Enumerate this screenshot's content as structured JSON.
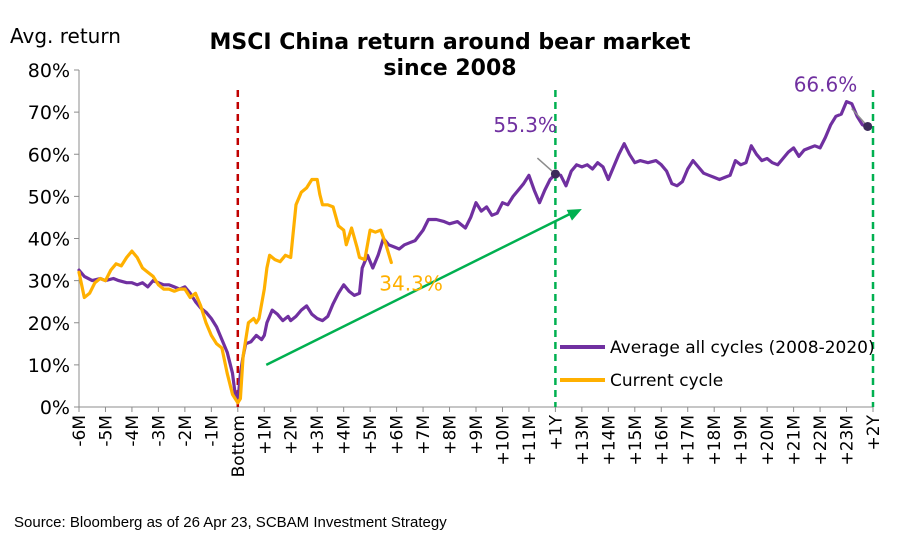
{
  "chart_data": {
    "type": "line",
    "title": "MSCI China return around bear market since 2008",
    "title_line1": "MSCI China return around bear market",
    "title_line2": "since 2008",
    "ylabel": "Avg. return",
    "ylim": [
      0,
      80
    ],
    "yticks": [
      "0%",
      "10%",
      "20%",
      "30%",
      "40%",
      "50%",
      "60%",
      "70%",
      "80%"
    ],
    "x_range": [
      -6,
      24
    ],
    "x_tick_labels": [
      "-6M",
      "-5M",
      "-4M",
      "-3M",
      "-2M",
      "-1M",
      "Bottom",
      "+1M",
      "+2M",
      "+3M",
      "+4M",
      "+5M",
      "+6M",
      "+7M",
      "+8M",
      "+9M",
      "+10M",
      "+11M",
      "+1Y",
      "+13M",
      "+14M",
      "+15M",
      "+16M",
      "+17M",
      "+18M",
      "+19M",
      "+20M",
      "+21M",
      "+22M",
      "+23M",
      "+2Y"
    ],
    "x_tick_positions": [
      -6,
      -5,
      -4,
      -3,
      -2,
      -1,
      0,
      1,
      2,
      3,
      4,
      5,
      6,
      7,
      8,
      9,
      10,
      11,
      12,
      13,
      14,
      15,
      16,
      17,
      18,
      19,
      20,
      21,
      22,
      23,
      24
    ],
    "grid": false,
    "legend_position": "bottom-right",
    "series": [
      {
        "name": "Average all cycles (2008-2020)",
        "color": "#7030A0",
        "points": [
          [
            -6,
            32.5
          ],
          [
            -5.8,
            31
          ],
          [
            -5.5,
            30
          ],
          [
            -5.2,
            30.5
          ],
          [
            -5,
            30
          ],
          [
            -4.7,
            30.5
          ],
          [
            -4.5,
            30
          ],
          [
            -4.2,
            29.5
          ],
          [
            -4,
            29.5
          ],
          [
            -3.8,
            29
          ],
          [
            -3.6,
            29.5
          ],
          [
            -3.4,
            28.5
          ],
          [
            -3.2,
            30
          ],
          [
            -3,
            29.5
          ],
          [
            -2.8,
            29
          ],
          [
            -2.6,
            29
          ],
          [
            -2.4,
            28.5
          ],
          [
            -2.2,
            28
          ],
          [
            -2,
            28.5
          ],
          [
            -1.8,
            27
          ],
          [
            -1.6,
            25
          ],
          [
            -1.4,
            23.5
          ],
          [
            -1.2,
            22.5
          ],
          [
            -1,
            21
          ],
          [
            -0.8,
            19
          ],
          [
            -0.6,
            16
          ],
          [
            -0.4,
            13
          ],
          [
            -0.2,
            8
          ],
          [
            -0.1,
            3
          ],
          [
            0,
            1
          ],
          [
            0.1,
            8
          ],
          [
            0.2,
            12
          ],
          [
            0.3,
            15
          ],
          [
            0.5,
            15.5
          ],
          [
            0.7,
            17
          ],
          [
            0.9,
            16
          ],
          [
            1,
            17
          ],
          [
            1.1,
            20
          ],
          [
            1.3,
            23
          ],
          [
            1.5,
            22
          ],
          [
            1.7,
            20.5
          ],
          [
            1.9,
            21.5
          ],
          [
            2,
            20.5
          ],
          [
            2.2,
            21.5
          ],
          [
            2.4,
            23
          ],
          [
            2.6,
            24
          ],
          [
            2.8,
            22
          ],
          [
            3,
            21
          ],
          [
            3.2,
            20.5
          ],
          [
            3.4,
            21.5
          ],
          [
            3.6,
            24.5
          ],
          [
            3.8,
            27
          ],
          [
            4,
            29
          ],
          [
            4.2,
            27.5
          ],
          [
            4.4,
            26.5
          ],
          [
            4.6,
            27
          ],
          [
            4.7,
            33
          ],
          [
            4.9,
            36
          ],
          [
            5.1,
            33
          ],
          [
            5.3,
            36
          ],
          [
            5.5,
            40
          ],
          [
            5.7,
            38.5
          ],
          [
            5.9,
            38
          ],
          [
            6.1,
            37.5
          ],
          [
            6.3,
            38.5
          ],
          [
            6.5,
            39
          ],
          [
            6.7,
            39.5
          ],
          [
            7,
            42
          ],
          [
            7.2,
            44.5
          ],
          [
            7.5,
            44.5
          ],
          [
            7.8,
            44
          ],
          [
            8,
            43.5
          ],
          [
            8.3,
            44
          ],
          [
            8.6,
            42.5
          ],
          [
            8.8,
            45
          ],
          [
            9,
            48.5
          ],
          [
            9.2,
            46.5
          ],
          [
            9.4,
            47.5
          ],
          [
            9.6,
            45.5
          ],
          [
            9.8,
            46
          ],
          [
            10,
            48.5
          ],
          [
            10.2,
            48
          ],
          [
            10.4,
            50
          ],
          [
            10.6,
            51.5
          ],
          [
            10.8,
            53
          ],
          [
            11,
            55
          ],
          [
            11.2,
            51.5
          ],
          [
            11.4,
            48.5
          ],
          [
            11.6,
            51.5
          ],
          [
            11.8,
            54
          ],
          [
            12,
            55.3
          ],
          [
            12.2,
            55
          ],
          [
            12.4,
            52.5
          ],
          [
            12.6,
            56
          ],
          [
            12.8,
            57.5
          ],
          [
            13,
            57
          ],
          [
            13.2,
            57.5
          ],
          [
            13.4,
            56.5
          ],
          [
            13.6,
            58
          ],
          [
            13.8,
            57
          ],
          [
            14,
            54
          ],
          [
            14.2,
            57
          ],
          [
            14.4,
            60
          ],
          [
            14.6,
            62.5
          ],
          [
            14.8,
            60
          ],
          [
            15,
            58
          ],
          [
            15.2,
            58.5
          ],
          [
            15.5,
            58
          ],
          [
            15.8,
            58.5
          ],
          [
            16,
            57.5
          ],
          [
            16.2,
            56
          ],
          [
            16.4,
            53
          ],
          [
            16.6,
            52.5
          ],
          [
            16.8,
            53.5
          ],
          [
            17,
            56.5
          ],
          [
            17.2,
            58.5
          ],
          [
            17.4,
            57
          ],
          [
            17.6,
            55.5
          ],
          [
            17.8,
            55
          ],
          [
            18,
            54.5
          ],
          [
            18.2,
            54
          ],
          [
            18.4,
            54.5
          ],
          [
            18.6,
            55
          ],
          [
            18.8,
            58.5
          ],
          [
            19,
            57.5
          ],
          [
            19.2,
            58
          ],
          [
            19.4,
            62
          ],
          [
            19.6,
            60
          ],
          [
            19.8,
            58.5
          ],
          [
            20,
            59
          ],
          [
            20.2,
            58
          ],
          [
            20.4,
            57.5
          ],
          [
            20.6,
            59
          ],
          [
            20.8,
            60.5
          ],
          [
            21,
            61.5
          ],
          [
            21.2,
            59.5
          ],
          [
            21.4,
            61
          ],
          [
            21.6,
            61.5
          ],
          [
            21.8,
            62
          ],
          [
            22,
            61.5
          ],
          [
            22.2,
            64
          ],
          [
            22.4,
            67
          ],
          [
            22.6,
            69
          ],
          [
            22.8,
            69.5
          ],
          [
            23,
            72.5
          ],
          [
            23.2,
            72
          ],
          [
            23.4,
            69
          ],
          [
            23.6,
            67
          ],
          [
            23.8,
            66.6
          ]
        ]
      },
      {
        "name": "Current cycle",
        "color": "#FFB000",
        "points": [
          [
            -6,
            32
          ],
          [
            -5.8,
            26
          ],
          [
            -5.6,
            27
          ],
          [
            -5.4,
            29.5
          ],
          [
            -5.2,
            30.5
          ],
          [
            -5,
            30
          ],
          [
            -4.8,
            32.5
          ],
          [
            -4.6,
            34
          ],
          [
            -4.4,
            33.5
          ],
          [
            -4.2,
            35.5
          ],
          [
            -4,
            37
          ],
          [
            -3.8,
            35.5
          ],
          [
            -3.6,
            33
          ],
          [
            -3.4,
            32
          ],
          [
            -3.2,
            31
          ],
          [
            -3,
            29
          ],
          [
            -2.8,
            28
          ],
          [
            -2.6,
            28
          ],
          [
            -2.4,
            27.5
          ],
          [
            -2.2,
            28
          ],
          [
            -2,
            28
          ],
          [
            -1.8,
            26
          ],
          [
            -1.6,
            27
          ],
          [
            -1.4,
            24
          ],
          [
            -1.2,
            20
          ],
          [
            -1,
            17
          ],
          [
            -0.8,
            15
          ],
          [
            -0.6,
            14
          ],
          [
            -0.4,
            8
          ],
          [
            -0.2,
            3
          ],
          [
            0,
            1
          ],
          [
            0.1,
            2
          ],
          [
            0.2,
            12
          ],
          [
            0.4,
            20
          ],
          [
            0.6,
            21
          ],
          [
            0.7,
            20
          ],
          [
            0.8,
            21
          ],
          [
            1,
            28
          ],
          [
            1.1,
            33
          ],
          [
            1.2,
            36
          ],
          [
            1.4,
            35
          ],
          [
            1.6,
            34.5
          ],
          [
            1.8,
            36
          ],
          [
            2,
            35.5
          ],
          [
            2.2,
            48
          ],
          [
            2.4,
            51
          ],
          [
            2.6,
            52
          ],
          [
            2.8,
            54
          ],
          [
            3,
            54
          ],
          [
            3.1,
            50.5
          ],
          [
            3.2,
            48
          ],
          [
            3.4,
            48
          ],
          [
            3.6,
            47.5
          ],
          [
            3.8,
            43
          ],
          [
            4,
            42
          ],
          [
            4.1,
            38.5
          ],
          [
            4.3,
            42.5
          ],
          [
            4.5,
            38
          ],
          [
            4.6,
            35.5
          ],
          [
            4.8,
            35
          ],
          [
            5,
            42
          ],
          [
            5.2,
            41.5
          ],
          [
            5.4,
            42
          ],
          [
            5.6,
            38.5
          ],
          [
            5.8,
            34.3
          ]
        ]
      }
    ],
    "annotations": [
      {
        "text": "55.3%",
        "x": 12,
        "y": 55.3,
        "color": "#7030A0"
      },
      {
        "text": "66.6%",
        "x": 23.8,
        "y": 66.6,
        "color": "#7030A0"
      },
      {
        "text": "34.3%",
        "x": 5.8,
        "y": 34.3,
        "color": "#FFB000"
      }
    ],
    "vertical_lines": [
      {
        "x": 0,
        "color": "#C00000",
        "style": "dashed"
      },
      {
        "x": 12,
        "color": "#00B050",
        "style": "dashed"
      },
      {
        "x": 24,
        "color": "#00B050",
        "style": "dashed"
      }
    ],
    "trend_arrow": {
      "from": [
        1,
        10
      ],
      "to": [
        13,
        47
      ],
      "color": "#00B050"
    }
  },
  "source": "Source: Bloomberg as of 26 Apr 23, SCBAM Investment Strategy"
}
